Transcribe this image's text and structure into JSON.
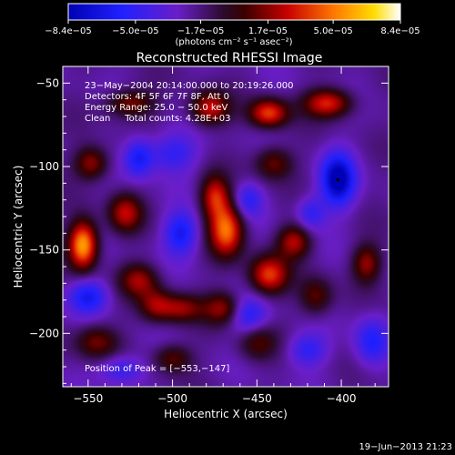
{
  "colorbar": {
    "ticks": [
      {
        "value": -8.4e-05,
        "label": "−8.4e−05"
      },
      {
        "value": -5e-05,
        "label": "−5.0e−05"
      },
      {
        "value": -1.7e-05,
        "label": "−1.7e−05"
      },
      {
        "value": 1.7e-05,
        "label": "1.7e−05"
      },
      {
        "value": 5e-05,
        "label": "5.0e−05"
      },
      {
        "value": 8.4e-05,
        "label": "8.4e−05"
      }
    ],
    "range": [
      -8.4e-05,
      8.4e-05
    ],
    "unit_label": "(photons cm⁻² s⁻¹ asec⁻²)"
  },
  "chart_data": {
    "type": "heatmap",
    "title": "Reconstructed RHESSI Image",
    "xlabel": "Heliocentric X (arcsec)",
    "ylabel": "Heliocentric Y (arcsec)",
    "xlim": [
      -565,
      -372
    ],
    "ylim": [
      -232,
      -40
    ],
    "xticks": [
      {
        "value": -550,
        "label": "−550"
      },
      {
        "value": -500,
        "label": "−500"
      },
      {
        "value": -450,
        "label": "−450"
      },
      {
        "value": -400,
        "label": "−400"
      }
    ],
    "yticks": [
      {
        "value": -50,
        "label": "−50"
      },
      {
        "value": -100,
        "label": "−100"
      },
      {
        "value": -150,
        "label": "−150"
      },
      {
        "value": -200,
        "label": "−200"
      }
    ],
    "annotations": [
      "23−May−2004 20:14:00.000 to 20:19:26.000",
      "Detectors: 4F 5F 6F 7F 8F, Att 0",
      "Energy Range: 25.0 − 50.0 keV",
      "Clean     Total counts: 4.28E+03"
    ],
    "peak_label": "Position of Peak = [−553,−147]",
    "peak": [
      -553,
      -147
    ],
    "sources": [
      {
        "x": -553,
        "y": -147,
        "amp": 8.4e-05,
        "sx": 6,
        "sy": 10
      },
      {
        "x": -443,
        "y": -68,
        "amp": 6e-05,
        "sx": 8,
        "sy": 6
      },
      {
        "x": -408,
        "y": -62,
        "amp": 5.5e-05,
        "sx": 10,
        "sy": 6
      },
      {
        "x": -478,
        "y": -65,
        "amp": 5e-05,
        "sx": 8,
        "sy": 7
      },
      {
        "x": -468,
        "y": -138,
        "amp": 6.8e-05,
        "sx": 7,
        "sy": 11
      },
      {
        "x": -475,
        "y": -118,
        "amp": 5e-05,
        "sx": 6,
        "sy": 9
      },
      {
        "x": -443,
        "y": -165,
        "amp": 5.8e-05,
        "sx": 8,
        "sy": 8
      },
      {
        "x": -428,
        "y": -145,
        "amp": 4.5e-05,
        "sx": 7,
        "sy": 7
      },
      {
        "x": -385,
        "y": -158,
        "amp": 4e-05,
        "sx": 6,
        "sy": 8
      },
      {
        "x": -528,
        "y": -128,
        "amp": 4.5e-05,
        "sx": 7,
        "sy": 8
      },
      {
        "x": -548,
        "y": -98,
        "amp": 4.2e-05,
        "sx": 7,
        "sy": 7
      },
      {
        "x": -525,
        "y": -62,
        "amp": 3.8e-05,
        "sx": 10,
        "sy": 6
      },
      {
        "x": -520,
        "y": -168,
        "amp": 4e-05,
        "sx": 8,
        "sy": 7
      },
      {
        "x": -510,
        "y": -183,
        "amp": 3.5e-05,
        "sx": 7,
        "sy": 7
      },
      {
        "x": -495,
        "y": -185,
        "amp": 3.8e-05,
        "sx": 9,
        "sy": 6
      },
      {
        "x": -470,
        "y": -185,
        "amp": 4e-05,
        "sx": 8,
        "sy": 7
      },
      {
        "x": -545,
        "y": -205,
        "amp": 3.5e-05,
        "sx": 9,
        "sy": 7
      },
      {
        "x": -500,
        "y": -215,
        "amp": 3.2e-05,
        "sx": 8,
        "sy": 6
      },
      {
        "x": -450,
        "y": -205,
        "amp": 3e-05,
        "sx": 8,
        "sy": 8
      },
      {
        "x": -415,
        "y": -178,
        "amp": 3.2e-05,
        "sx": 7,
        "sy": 8
      },
      {
        "x": -440,
        "y": -98,
        "amp": 3.5e-05,
        "sx": 8,
        "sy": 7
      },
      {
        "x": -500,
        "y": -92,
        "amp": -3e-05,
        "sx": 10,
        "sy": 8
      },
      {
        "x": -402,
        "y": -108,
        "amp": -6.5e-05,
        "sx": 7,
        "sy": 11
      },
      {
        "x": -520,
        "y": -95,
        "amp": -4e-05,
        "sx": 6,
        "sy": 8
      },
      {
        "x": -495,
        "y": -140,
        "amp": -4.2e-05,
        "sx": 7,
        "sy": 9
      },
      {
        "x": -550,
        "y": -178,
        "amp": -4e-05,
        "sx": 8,
        "sy": 7
      },
      {
        "x": -455,
        "y": -190,
        "amp": -3.5e-05,
        "sx": 8,
        "sy": 8
      },
      {
        "x": -530,
        "y": -222,
        "amp": -3e-05,
        "sx": 9,
        "sy": 6
      },
      {
        "x": -382,
        "y": -205,
        "amp": -3.5e-05,
        "sx": 7,
        "sy": 10
      },
      {
        "x": -420,
        "y": -210,
        "amp": -3e-05,
        "sx": 8,
        "sy": 7
      },
      {
        "x": -418,
        "y": -128,
        "amp": -3e-05,
        "sx": 6,
        "sy": 7
      },
      {
        "x": -455,
        "y": -120,
        "amp": -3e-05,
        "sx": 6,
        "sy": 7
      }
    ]
  },
  "footer": {
    "timestamp": "19−Jun−2013 21:23"
  }
}
